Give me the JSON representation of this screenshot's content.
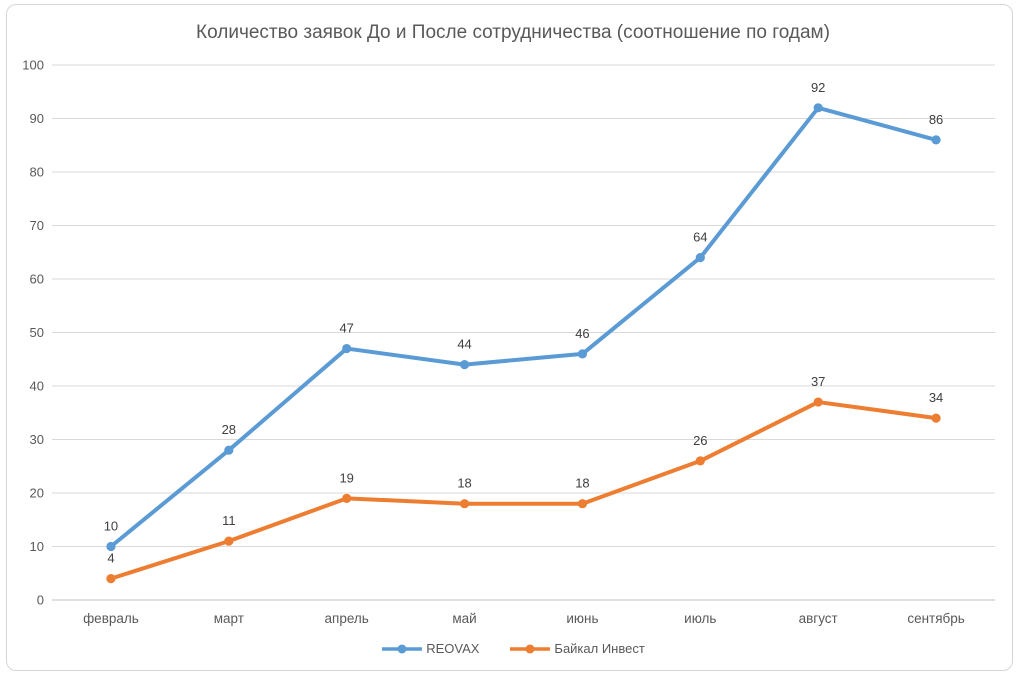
{
  "chart_data": {
    "type": "line",
    "title": "Количество заявок До и После сотрудничества (соотношение по годам)",
    "categories": [
      "февраль",
      "март",
      "апрель",
      "май",
      "июнь",
      "июль",
      "август",
      "сентябрь"
    ],
    "series": [
      {
        "name": "REOVAX",
        "color": "#5B9BD5",
        "values": [
          10,
          28,
          47,
          44,
          46,
          64,
          92,
          86
        ]
      },
      {
        "name": "Байкал Инвест",
        "color": "#ED7D31",
        "values": [
          4,
          11,
          19,
          18,
          18,
          26,
          37,
          34
        ]
      }
    ],
    "ylim": [
      0,
      100
    ],
    "yticks": [
      0,
      10,
      20,
      30,
      40,
      50,
      60,
      70,
      80,
      90,
      100
    ],
    "grid": true,
    "data_labels": true,
    "legend_position": "bottom"
  },
  "colors": {
    "gridline": "#D9D9D9",
    "axis_line": "#BFBFBF",
    "axis_text": "#595959",
    "data_label_text": "#404040",
    "title_text": "#595959",
    "frame_border": "#D6D6D6",
    "background": "#FFFFFF"
  }
}
